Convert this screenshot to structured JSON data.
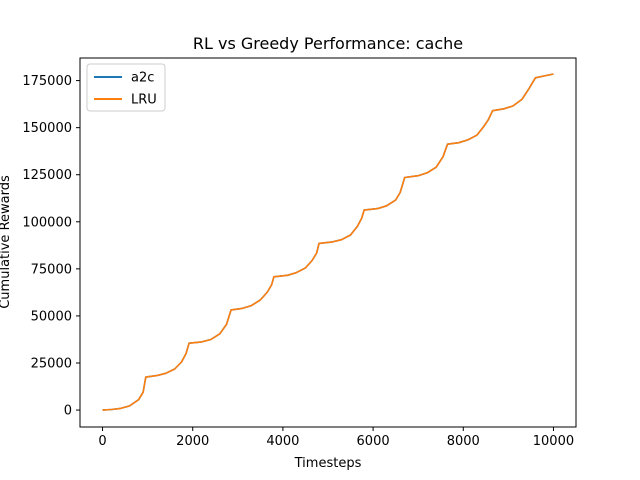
{
  "chart_data": {
    "type": "line",
    "title": "RL vs Greedy Performance: cache",
    "xlabel": "Timesteps",
    "ylabel": "Cumulative Rewards",
    "xlim": [
      -500,
      10500
    ],
    "ylim": [
      -9000,
      187000
    ],
    "xticks": [
      0,
      2000,
      4000,
      6000,
      8000,
      10000
    ],
    "yticks": [
      0,
      25000,
      50000,
      75000,
      100000,
      125000,
      150000,
      175000
    ],
    "grid": false,
    "legend_position": "top-left",
    "series": [
      {
        "name": "a2c",
        "color": "#1f77b4",
        "points": [
          [
            0,
            0
          ],
          [
            200,
            300
          ],
          [
            400,
            900
          ],
          [
            600,
            2200
          ],
          [
            800,
            5500
          ],
          [
            900,
            9500
          ],
          [
            960,
            17500
          ],
          [
            1200,
            18300
          ],
          [
            1400,
            19500
          ],
          [
            1600,
            21800
          ],
          [
            1750,
            25500
          ],
          [
            1850,
            30000
          ],
          [
            1920,
            35500
          ],
          [
            2200,
            36200
          ],
          [
            2400,
            37500
          ],
          [
            2600,
            40500
          ],
          [
            2750,
            45500
          ],
          [
            2850,
            53200
          ],
          [
            3100,
            54000
          ],
          [
            3300,
            55500
          ],
          [
            3500,
            58500
          ],
          [
            3650,
            62500
          ],
          [
            3750,
            66500
          ],
          [
            3800,
            70800
          ],
          [
            4100,
            71600
          ],
          [
            4300,
            73000
          ],
          [
            4500,
            75500
          ],
          [
            4650,
            79500
          ],
          [
            4750,
            83500
          ],
          [
            4800,
            88500
          ],
          [
            5100,
            89300
          ],
          [
            5300,
            90500
          ],
          [
            5500,
            93000
          ],
          [
            5650,
            97500
          ],
          [
            5750,
            102000
          ],
          [
            5800,
            106200
          ],
          [
            6100,
            107000
          ],
          [
            6300,
            108500
          ],
          [
            6500,
            111500
          ],
          [
            6600,
            115500
          ],
          [
            6700,
            123500
          ],
          [
            7000,
            124500
          ],
          [
            7200,
            126000
          ],
          [
            7400,
            129000
          ],
          [
            7550,
            134500
          ],
          [
            7650,
            141200
          ],
          [
            7900,
            142000
          ],
          [
            8100,
            143500
          ],
          [
            8300,
            146000
          ],
          [
            8450,
            150500
          ],
          [
            8550,
            154000
          ],
          [
            8650,
            159000
          ],
          [
            8900,
            160000
          ],
          [
            9100,
            161500
          ],
          [
            9300,
            165000
          ],
          [
            9450,
            170500
          ],
          [
            9600,
            176500
          ],
          [
            9800,
            177500
          ],
          [
            10000,
            178500
          ]
        ]
      },
      {
        "name": "LRU",
        "color": "#ff7f0e",
        "points": [
          [
            0,
            0
          ],
          [
            200,
            300
          ],
          [
            400,
            900
          ],
          [
            600,
            2200
          ],
          [
            800,
            5500
          ],
          [
            900,
            9500
          ],
          [
            960,
            17500
          ],
          [
            1200,
            18300
          ],
          [
            1400,
            19500
          ],
          [
            1600,
            21800
          ],
          [
            1750,
            25500
          ],
          [
            1850,
            30000
          ],
          [
            1920,
            35500
          ],
          [
            2200,
            36200
          ],
          [
            2400,
            37500
          ],
          [
            2600,
            40500
          ],
          [
            2750,
            45500
          ],
          [
            2850,
            53200
          ],
          [
            3100,
            54000
          ],
          [
            3300,
            55500
          ],
          [
            3500,
            58500
          ],
          [
            3650,
            62500
          ],
          [
            3750,
            66500
          ],
          [
            3800,
            70800
          ],
          [
            4100,
            71600
          ],
          [
            4300,
            73000
          ],
          [
            4500,
            75500
          ],
          [
            4650,
            79500
          ],
          [
            4750,
            83500
          ],
          [
            4800,
            88500
          ],
          [
            5100,
            89300
          ],
          [
            5300,
            90500
          ],
          [
            5500,
            93000
          ],
          [
            5650,
            97500
          ],
          [
            5750,
            102000
          ],
          [
            5800,
            106200
          ],
          [
            6100,
            107000
          ],
          [
            6300,
            108500
          ],
          [
            6500,
            111500
          ],
          [
            6600,
            115500
          ],
          [
            6700,
            123500
          ],
          [
            7000,
            124500
          ],
          [
            7200,
            126000
          ],
          [
            7400,
            129000
          ],
          [
            7550,
            134500
          ],
          [
            7650,
            141200
          ],
          [
            7900,
            142000
          ],
          [
            8100,
            143500
          ],
          [
            8300,
            146000
          ],
          [
            8450,
            150500
          ],
          [
            8550,
            154000
          ],
          [
            8650,
            159000
          ],
          [
            8900,
            160000
          ],
          [
            9100,
            161500
          ],
          [
            9300,
            165000
          ],
          [
            9450,
            170500
          ],
          [
            9600,
            176500
          ],
          [
            9800,
            177500
          ],
          [
            10000,
            178500
          ]
        ]
      }
    ]
  }
}
